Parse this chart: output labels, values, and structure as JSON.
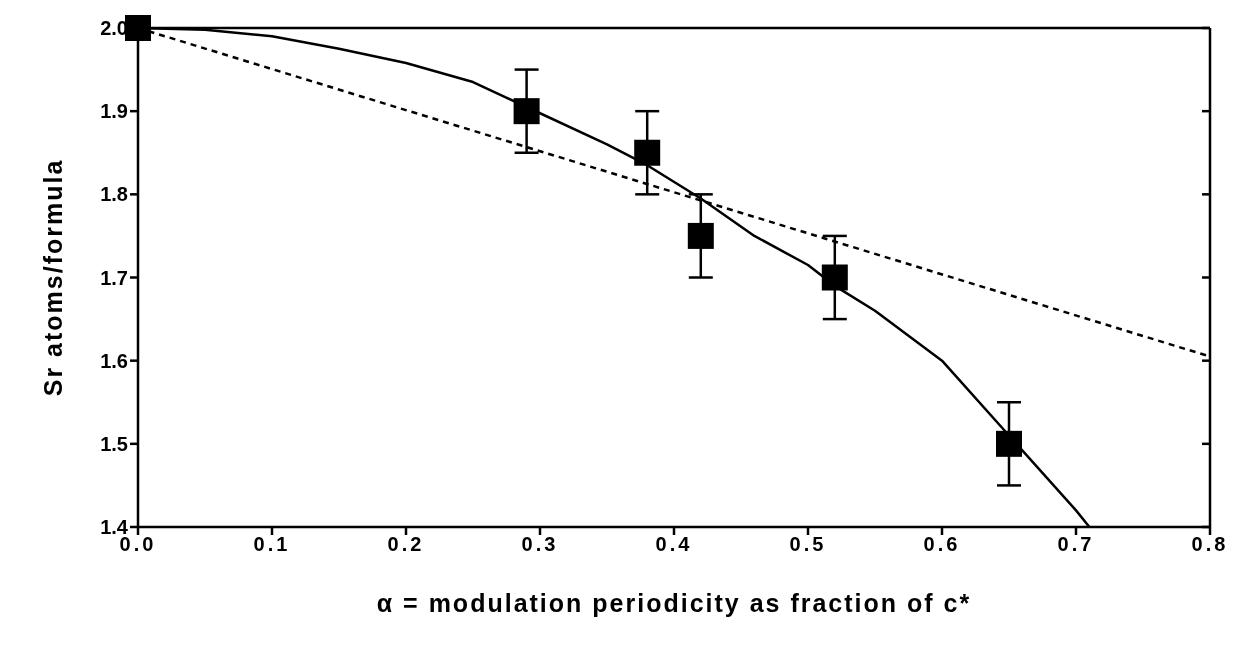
{
  "chart_data": {
    "type": "scatter",
    "xlabel": "α = modulation periodicity as fraction of c*",
    "ylabel": "Sr   atoms/formula",
    "xlim": [
      0,
      0.8
    ],
    "xticks": [
      {
        "value": 0,
        "label": "0.0"
      },
      0.1,
      0.2,
      0.3,
      0.4,
      0.5,
      0.6,
      0.7,
      0.8
    ],
    "ylim": [
      1.4,
      2.0
    ],
    "yticks": [
      1.4,
      1.5,
      1.6,
      1.7,
      1.8,
      1.9,
      {
        "value": 2.0,
        "label": "2.0"
      }
    ],
    "grid": false,
    "series": [
      {
        "type": "line",
        "color": "#000000",
        "line_style": "solid",
        "marker": "none",
        "x": [
          0,
          0.05,
          0.1,
          0.15,
          0.2,
          0.25,
          0.29,
          0.35,
          0.38,
          0.42,
          0.46,
          0.5,
          0.52,
          0.55,
          0.6,
          0.65,
          0.7,
          0.71
        ],
        "values": [
          2.0,
          1.998,
          1.99,
          1.975,
          1.958,
          1.935,
          1.905,
          1.86,
          1.835,
          1.795,
          1.75,
          1.715,
          1.69,
          1.66,
          1.6,
          1.51,
          1.42,
          1.4
        ]
      },
      {
        "type": "line",
        "color": "#000000",
        "line_style": "dashed",
        "marker": "none",
        "x": [
          0,
          0.8
        ],
        "values": [
          2.0,
          1.605
        ]
      },
      {
        "color": "#000000",
        "marker": "square",
        "x": [
          0,
          0.29,
          0.38,
          0.42,
          0.52,
          0.65
        ],
        "values": [
          2.0,
          1.9,
          1.85,
          1.75,
          1.7,
          1.5
        ],
        "errors": [
          null,
          0.05,
          0.05,
          0.05,
          0.05,
          0.05
        ]
      }
    ]
  }
}
